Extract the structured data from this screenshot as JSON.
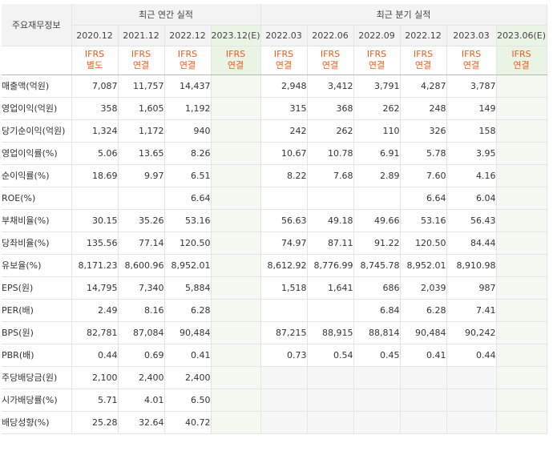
{
  "header": {
    "row_label": "주요재무정보",
    "annual_title": "최근 연간 실적",
    "quarterly_title": "최근 분기 실적"
  },
  "columns": [
    {
      "date": "2020.12",
      "ifrs": [
        "IFRS",
        "별도"
      ],
      "estimate": false
    },
    {
      "date": "2021.12",
      "ifrs": [
        "IFRS",
        "연결"
      ],
      "estimate": false
    },
    {
      "date": "2022.12",
      "ifrs": [
        "IFRS",
        "연결"
      ],
      "estimate": false
    },
    {
      "date": "2023.12(E)",
      "ifrs": [
        "IFRS",
        "연결"
      ],
      "estimate": true
    },
    {
      "date": "2022.03",
      "ifrs": [
        "IFRS",
        "연결"
      ],
      "estimate": false
    },
    {
      "date": "2022.06",
      "ifrs": [
        "IFRS",
        "연결"
      ],
      "estimate": false
    },
    {
      "date": "2022.09",
      "ifrs": [
        "IFRS",
        "연결"
      ],
      "estimate": false
    },
    {
      "date": "2022.12",
      "ifrs": [
        "IFRS",
        "연결"
      ],
      "estimate": false
    },
    {
      "date": "2023.03",
      "ifrs": [
        "IFRS",
        "연결"
      ],
      "estimate": false
    },
    {
      "date": "2023.06(E)",
      "ifrs": [
        "IFRS",
        "연결"
      ],
      "estimate": true
    }
  ],
  "rows": [
    {
      "label": "매출액(억원)",
      "values": [
        "7,087",
        "11,757",
        "14,437",
        "",
        "2,948",
        "3,412",
        "3,791",
        "4,287",
        "3,787",
        ""
      ]
    },
    {
      "label": "영업이익(억원)",
      "values": [
        "358",
        "1,605",
        "1,192",
        "",
        "315",
        "368",
        "262",
        "248",
        "149",
        ""
      ]
    },
    {
      "label": "당기순이익(억원)",
      "values": [
        "1,324",
        "1,172",
        "940",
        "",
        "242",
        "262",
        "110",
        "326",
        "158",
        ""
      ]
    },
    {
      "label": "영업이익률(%)",
      "values": [
        "5.06",
        "13.65",
        "8.26",
        "",
        "10.67",
        "10.78",
        "6.91",
        "5.78",
        "3.95",
        ""
      ]
    },
    {
      "label": "순이익률(%)",
      "values": [
        "18.69",
        "9.97",
        "6.51",
        "",
        "8.22",
        "7.68",
        "2.89",
        "7.60",
        "4.16",
        ""
      ]
    },
    {
      "label": "ROE(%)",
      "values": [
        "",
        "",
        "6.64",
        "",
        "",
        "",
        "",
        "6.64",
        "6.04",
        ""
      ]
    },
    {
      "label": "부채비율(%)",
      "values": [
        "30.15",
        "35.26",
        "53.16",
        "",
        "56.63",
        "49.18",
        "49.66",
        "53.16",
        "56.43",
        ""
      ]
    },
    {
      "label": "당좌비율(%)",
      "values": [
        "135.56",
        "77.14",
        "120.50",
        "",
        "74.97",
        "87.11",
        "91.22",
        "120.50",
        "84.44",
        ""
      ]
    },
    {
      "label": "유보율(%)",
      "values": [
        "8,171.23",
        "8,600.96",
        "8,952.01",
        "",
        "8,612.92",
        "8,776.99",
        "8,745.78",
        "8,952.01",
        "8,910.98",
        ""
      ]
    },
    {
      "label": "EPS(원)",
      "values": [
        "14,795",
        "7,340",
        "5,884",
        "",
        "1,518",
        "1,641",
        "686",
        "2,039",
        "987",
        ""
      ]
    },
    {
      "label": "PER(배)",
      "values": [
        "2.49",
        "8.16",
        "6.28",
        "",
        "",
        "",
        "6.84",
        "6.28",
        "7.41",
        ""
      ]
    },
    {
      "label": "BPS(원)",
      "values": [
        "82,781",
        "87,084",
        "90,484",
        "",
        "87,215",
        "88,915",
        "88,814",
        "90,484",
        "90,242",
        ""
      ]
    },
    {
      "label": "PBR(배)",
      "values": [
        "0.44",
        "0.69",
        "0.41",
        "",
        "0.73",
        "0.54",
        "0.45",
        "0.41",
        "0.44",
        ""
      ]
    },
    {
      "label": "주당배당금(원)",
      "values": [
        "2,100",
        "2,400",
        "2,400",
        "",
        "",
        "",
        "",
        "",
        "",
        ""
      ]
    },
    {
      "label": "시가배당률(%)",
      "values": [
        "5.71",
        "4.01",
        "6.50",
        "",
        "",
        "",
        "",
        "",
        "",
        ""
      ]
    },
    {
      "label": "배당성향(%)",
      "values": [
        "25.28",
        "32.64",
        "40.72",
        "",
        "",
        "",
        "",
        "",
        "",
        ""
      ]
    }
  ],
  "colors": {
    "ifrs_text": "#f05a18",
    "estimate_bg": "#e9f4e5",
    "header_bg": "#f3f3f3"
  }
}
